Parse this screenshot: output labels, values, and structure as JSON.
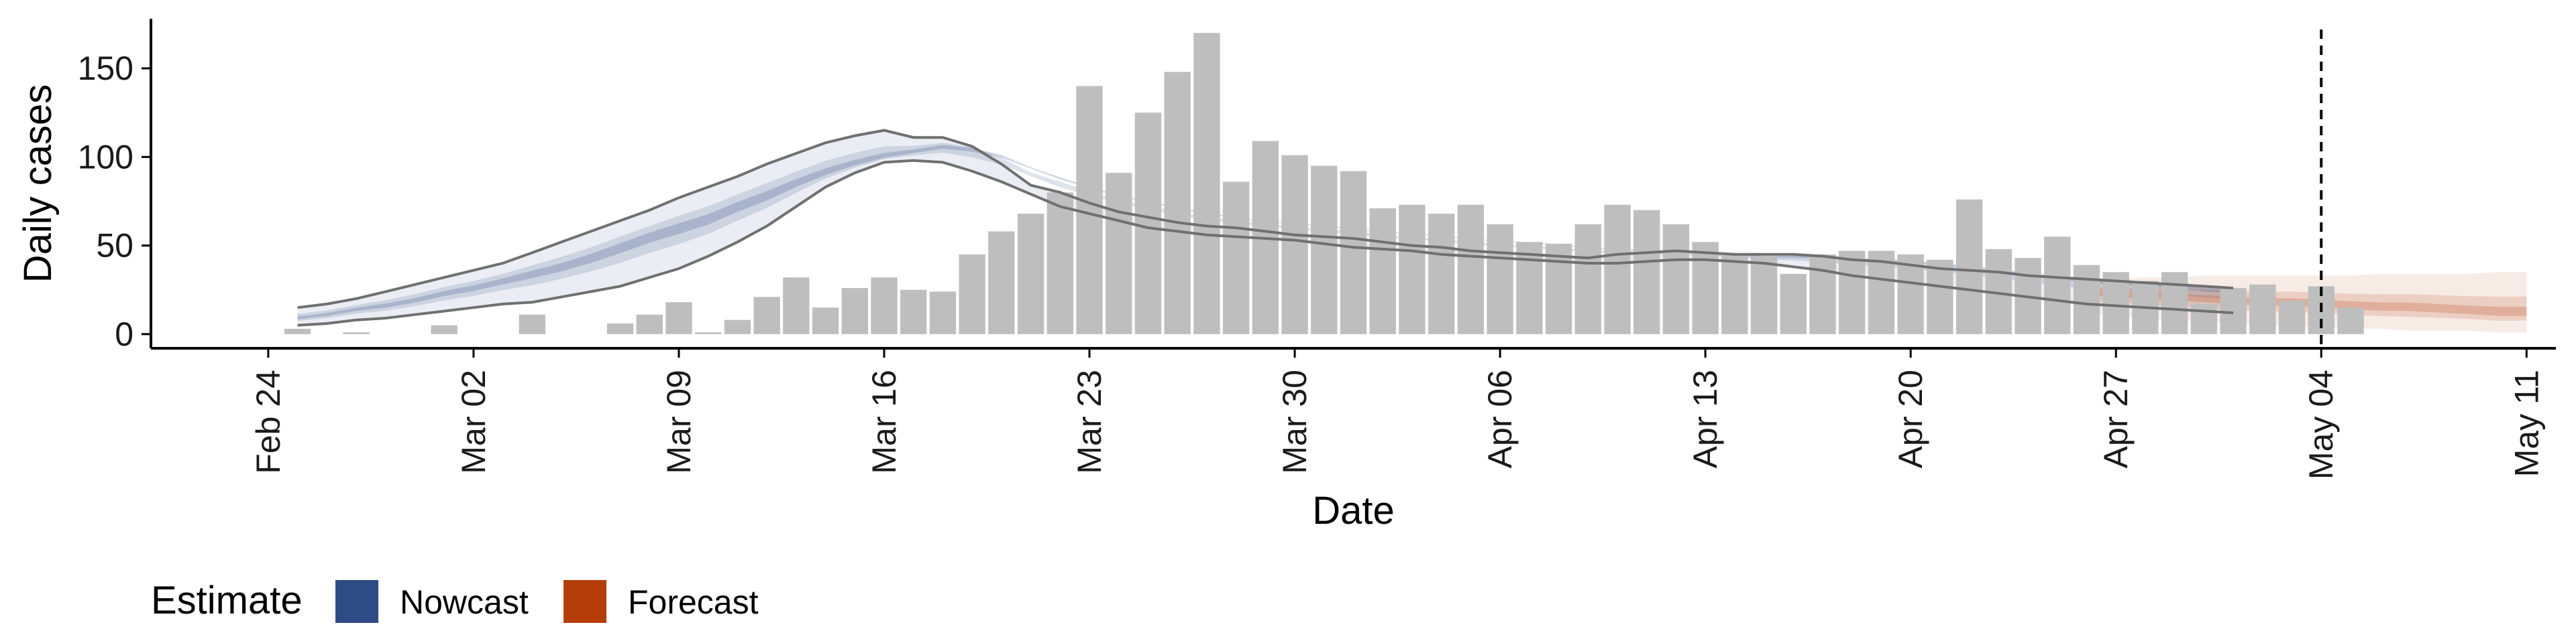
{
  "chart_data": {
    "type": "bar",
    "xlabel": "Date",
    "ylabel": "Daily cases",
    "x_ticks": [
      "Feb 24",
      "Mar 02",
      "Mar 09",
      "Mar 16",
      "Mar 23",
      "Mar 30",
      "Apr 06",
      "Apr 13",
      "Apr 20",
      "Apr 27",
      "May 04",
      "May 11"
    ],
    "y_ticks": [
      0,
      50,
      100,
      150
    ],
    "ylim": [
      -8,
      178
    ],
    "xlim": [
      "2020-02-20",
      "2020-05-12"
    ],
    "grid": false,
    "vline": {
      "date": "2020-05-04",
      "style": "dashed"
    },
    "colors": {
      "bars": "#bebebe",
      "nowcast": "#2f4b85",
      "forecast": "#b53d0a",
      "ci_line": "#707070"
    },
    "bars": {
      "start_date": "2020-02-25",
      "values": [
        3,
        0,
        1,
        0,
        0,
        5,
        0,
        0,
        11,
        0,
        0,
        6,
        11,
        18,
        1,
        8,
        21,
        32,
        15,
        26,
        32,
        25,
        24,
        45,
        58,
        68,
        80,
        140,
        91,
        125,
        148,
        170,
        86,
        109,
        101,
        95,
        92,
        71,
        73,
        68,
        73,
        62,
        52,
        51,
        62,
        73,
        70,
        62,
        52,
        45,
        44,
        34,
        45,
        47,
        47,
        45,
        42,
        76,
        48,
        43,
        55,
        39,
        35,
        30,
        35,
        17,
        26,
        28,
        19,
        27,
        15
      ]
    },
    "series": [
      {
        "name": "Nowcast",
        "start_date": "2020-02-25",
        "median": [
          9,
          11,
          14,
          16,
          19,
          23,
          26,
          30,
          34,
          38,
          43,
          49,
          55,
          60,
          65,
          72,
          78,
          85,
          91,
          96,
          100,
          103,
          106,
          105,
          102,
          96,
          90,
          85,
          80,
          77,
          73,
          70,
          67,
          65,
          64,
          62,
          61,
          59,
          58,
          57,
          55,
          54,
          53,
          52,
          50,
          49,
          48,
          47,
          46,
          45,
          44,
          44,
          44,
          43,
          43,
          42,
          41,
          39,
          37,
          35,
          33,
          31,
          30,
          29,
          28,
          26,
          25
        ],
        "ci_outer_upper": [
          15,
          17,
          20,
          24,
          28,
          32,
          36,
          40,
          46,
          52,
          58,
          64,
          70,
          77,
          83,
          89,
          96,
          102,
          108,
          112,
          115,
          111,
          111,
          106,
          96,
          84,
          80,
          74,
          69,
          66,
          63,
          61,
          60,
          58,
          56,
          55,
          54,
          52,
          50,
          49,
          47,
          46,
          45,
          44,
          43,
          45,
          46,
          47,
          46,
          45,
          45,
          45,
          44,
          42,
          41,
          39,
          37,
          36,
          35,
          33,
          32,
          31,
          30,
          29,
          28,
          27,
          26
        ],
        "ci_outer_lower": [
          5,
          6,
          8,
          9,
          11,
          13,
          15,
          17,
          18,
          21,
          24,
          27,
          32,
          37,
          44,
          52,
          61,
          72,
          83,
          91,
          97,
          98,
          97,
          92,
          86,
          79,
          72,
          68,
          64,
          60,
          58,
          56,
          55,
          54,
          53,
          51,
          49,
          48,
          47,
          45,
          44,
          43,
          42,
          41,
          40,
          40,
          41,
          42,
          42,
          41,
          40,
          38,
          36,
          33,
          31,
          29,
          27,
          25,
          23,
          21,
          19,
          17,
          16,
          15,
          14,
          13,
          12
        ]
      },
      {
        "name": "Forecast",
        "start_date": "2020-04-26",
        "median": [
          24,
          23,
          22,
          21,
          20,
          19,
          18,
          18,
          17,
          16,
          15,
          15,
          14,
          13,
          12,
          12
        ],
        "ci_outer_upper": [
          30,
          31,
          32,
          32,
          33,
          33,
          33,
          33,
          33,
          33,
          34,
          34,
          34,
          34,
          35,
          35
        ],
        "ci_outer_lower": [
          12,
          10,
          9,
          8,
          7,
          6,
          5,
          4,
          4,
          3,
          3,
          2,
          2,
          2,
          1,
          1
        ]
      }
    ],
    "legend": {
      "title": "Estimate",
      "position": "bottom-left",
      "entries": [
        "Nowcast",
        "Forecast"
      ]
    }
  }
}
